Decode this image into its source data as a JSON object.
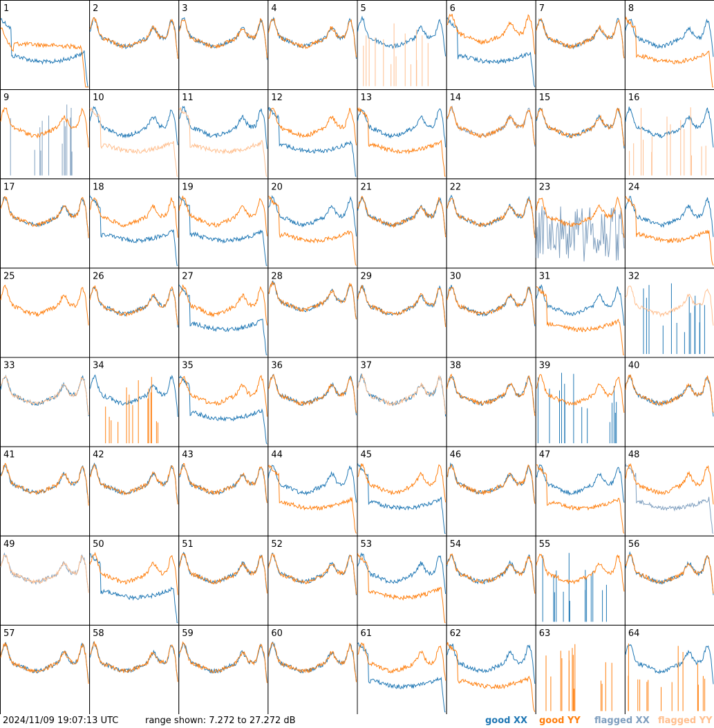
{
  "footer": {
    "timestamp": "2024/11/09 19:07:13 UTC",
    "range": "range shown: 7.272 to 27.272 dB"
  },
  "legend": [
    {
      "label": "good XX",
      "color": "#1f77b4"
    },
    {
      "label": "good YY",
      "color": "#ff7f0e"
    },
    {
      "label": "flagged XX",
      "color": "#7f9fbf"
    },
    {
      "label": "flagged YY",
      "color": "#ffbf8f"
    }
  ],
  "chart_data": {
    "type": "line",
    "grid": "8x8",
    "range_db": [
      7.272,
      27.272
    ],
    "panels": [
      {
        "id": "1",
        "xx": "low",
        "yy": "bad",
        "mode": "good"
      },
      {
        "id": "2",
        "xx": "good",
        "yy": "good",
        "mode": "good"
      },
      {
        "id": "3",
        "xx": "good",
        "yy": "good",
        "mode": "good"
      },
      {
        "id": "4",
        "xx": "good",
        "yy": "good",
        "mode": "good"
      },
      {
        "id": "5",
        "xx": "good",
        "yy": "spikes",
        "mode": "flagYY"
      },
      {
        "id": "6",
        "xx": "low",
        "yy": "high",
        "mode": "good"
      },
      {
        "id": "7",
        "xx": "good",
        "yy": "good",
        "mode": "good"
      },
      {
        "id": "8",
        "xx": "good",
        "yy": "low",
        "mode": "good"
      },
      {
        "id": "9",
        "xx": "spikes",
        "yy": "good",
        "mode": "flagXX"
      },
      {
        "id": "10",
        "xx": "good",
        "yy": "low",
        "mode": "flagYY"
      },
      {
        "id": "11",
        "xx": "good",
        "yy": "low",
        "mode": "flagYY"
      },
      {
        "id": "12",
        "xx": "low",
        "yy": "good",
        "mode": "good"
      },
      {
        "id": "13",
        "xx": "good",
        "yy": "low",
        "mode": "good"
      },
      {
        "id": "14",
        "xx": "good",
        "yy": "good",
        "mode": "flagXX"
      },
      {
        "id": "15",
        "xx": "good",
        "yy": "good",
        "mode": "good"
      },
      {
        "id": "16",
        "xx": "good",
        "yy": "spikes",
        "mode": "flagYY"
      },
      {
        "id": "17",
        "xx": "good",
        "yy": "good",
        "mode": "good"
      },
      {
        "id": "18",
        "xx": "low",
        "yy": "good",
        "mode": "good"
      },
      {
        "id": "19",
        "xx": "low",
        "yy": "good",
        "mode": "good"
      },
      {
        "id": "20",
        "xx": "good",
        "yy": "low",
        "mode": "good"
      },
      {
        "id": "21",
        "xx": "good",
        "yy": "good",
        "mode": "good"
      },
      {
        "id": "22",
        "xx": "good",
        "yy": "good",
        "mode": "good"
      },
      {
        "id": "23",
        "xx": "noise",
        "yy": "good",
        "mode": "flagXX"
      },
      {
        "id": "24",
        "xx": "good",
        "yy": "low",
        "mode": "good"
      },
      {
        "id": "25",
        "xx": "none",
        "yy": "good",
        "mode": "good"
      },
      {
        "id": "26",
        "xx": "good",
        "yy": "good",
        "mode": "good"
      },
      {
        "id": "27",
        "xx": "low",
        "yy": "good",
        "mode": "good"
      },
      {
        "id": "28",
        "xx": "high",
        "yy": "high",
        "mode": "good"
      },
      {
        "id": "29",
        "xx": "good",
        "yy": "good",
        "mode": "good"
      },
      {
        "id": "30",
        "xx": "good",
        "yy": "good",
        "mode": "good"
      },
      {
        "id": "31",
        "xx": "good",
        "yy": "low",
        "mode": "good"
      },
      {
        "id": "32",
        "xx": "spikes",
        "yy": "good",
        "mode": "flagYY"
      },
      {
        "id": "33",
        "xx": "good",
        "yy": "good",
        "mode": "flagYY"
      },
      {
        "id": "34",
        "xx": "good",
        "yy": "spikes",
        "mode": "good"
      },
      {
        "id": "35",
        "xx": "low",
        "yy": "good",
        "mode": "good"
      },
      {
        "id": "36",
        "xx": "good",
        "yy": "good",
        "mode": "good"
      },
      {
        "id": "37",
        "xx": "good",
        "yy": "good",
        "mode": "flagYY"
      },
      {
        "id": "38",
        "xx": "good",
        "yy": "good",
        "mode": "good"
      },
      {
        "id": "39",
        "xx": "spikes",
        "yy": "good",
        "mode": "good"
      },
      {
        "id": "40",
        "xx": "good",
        "yy": "good",
        "mode": "good"
      },
      {
        "id": "41",
        "xx": "good",
        "yy": "good",
        "mode": "good"
      },
      {
        "id": "42",
        "xx": "good",
        "yy": "good",
        "mode": "good"
      },
      {
        "id": "43",
        "xx": "good",
        "yy": "good",
        "mode": "good"
      },
      {
        "id": "44",
        "xx": "good",
        "yy": "low",
        "mode": "good"
      },
      {
        "id": "45",
        "xx": "low",
        "yy": "good",
        "mode": "good"
      },
      {
        "id": "46",
        "xx": "good",
        "yy": "good",
        "mode": "good"
      },
      {
        "id": "47",
        "xx": "good",
        "yy": "low",
        "mode": "good"
      },
      {
        "id": "48",
        "xx": "low",
        "yy": "good",
        "mode": "flagXX"
      },
      {
        "id": "49",
        "xx": "good",
        "yy": "good",
        "mode": "flagBoth"
      },
      {
        "id": "50",
        "xx": "low",
        "yy": "good",
        "mode": "good"
      },
      {
        "id": "51",
        "xx": "good",
        "yy": "good",
        "mode": "good"
      },
      {
        "id": "52",
        "xx": "good",
        "yy": "good",
        "mode": "good"
      },
      {
        "id": "53",
        "xx": "good",
        "yy": "low",
        "mode": "good"
      },
      {
        "id": "54",
        "xx": "good",
        "yy": "good",
        "mode": "good"
      },
      {
        "id": "55",
        "xx": "spikes",
        "yy": "good",
        "mode": "good"
      },
      {
        "id": "56",
        "xx": "good",
        "yy": "good",
        "mode": "good"
      },
      {
        "id": "57",
        "xx": "good",
        "yy": "good",
        "mode": "good"
      },
      {
        "id": "58",
        "xx": "good",
        "yy": "good",
        "mode": "good"
      },
      {
        "id": "59",
        "xx": "good",
        "yy": "good",
        "mode": "good"
      },
      {
        "id": "60",
        "xx": "good",
        "yy": "good",
        "mode": "good"
      },
      {
        "id": "61",
        "xx": "low",
        "yy": "good",
        "mode": "good"
      },
      {
        "id": "62",
        "xx": "good",
        "yy": "low",
        "mode": "good"
      },
      {
        "id": "63",
        "xx": "none",
        "yy": "spikes",
        "mode": "good"
      },
      {
        "id": "64",
        "xx": "good",
        "yy": "spikes",
        "mode": "good"
      }
    ]
  }
}
